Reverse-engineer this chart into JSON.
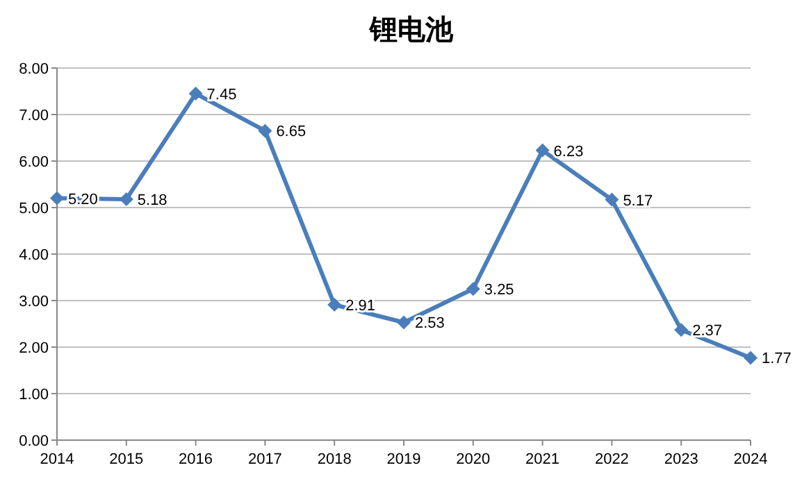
{
  "chart_data": {
    "type": "line",
    "title": "锂电池",
    "categories": [
      "2014",
      "2015",
      "2016",
      "2017",
      "2018",
      "2019",
      "2020",
      "2021",
      "2022",
      "2023",
      "2024"
    ],
    "series": [
      {
        "color": "#4a7ebb",
        "values": [
          5.2,
          5.18,
          7.45,
          6.65,
          2.91,
          2.53,
          3.25,
          6.23,
          5.17,
          2.37,
          1.77
        ],
        "value_labels": [
          "5.20",
          "5.18",
          "7.45",
          "6.65",
          "2.91",
          "2.53",
          "3.25",
          "6.23",
          "5.17",
          "2.37",
          "1.77"
        ]
      }
    ],
    "ylim": [
      0,
      8
    ],
    "yticks": [
      {
        "value": 0,
        "label": "0.00"
      },
      {
        "value": 1,
        "label": "1.00"
      },
      {
        "value": 2,
        "label": "2.00"
      },
      {
        "value": 3,
        "label": "3.00"
      },
      {
        "value": 4,
        "label": "4.00"
      },
      {
        "value": 5,
        "label": "5.00"
      },
      {
        "value": 6,
        "label": "6.00"
      },
      {
        "value": 7,
        "label": "7.00"
      },
      {
        "value": 8,
        "label": "8.00"
      }
    ],
    "grid": "y",
    "marker": "diamond",
    "line_style": "solid"
  }
}
